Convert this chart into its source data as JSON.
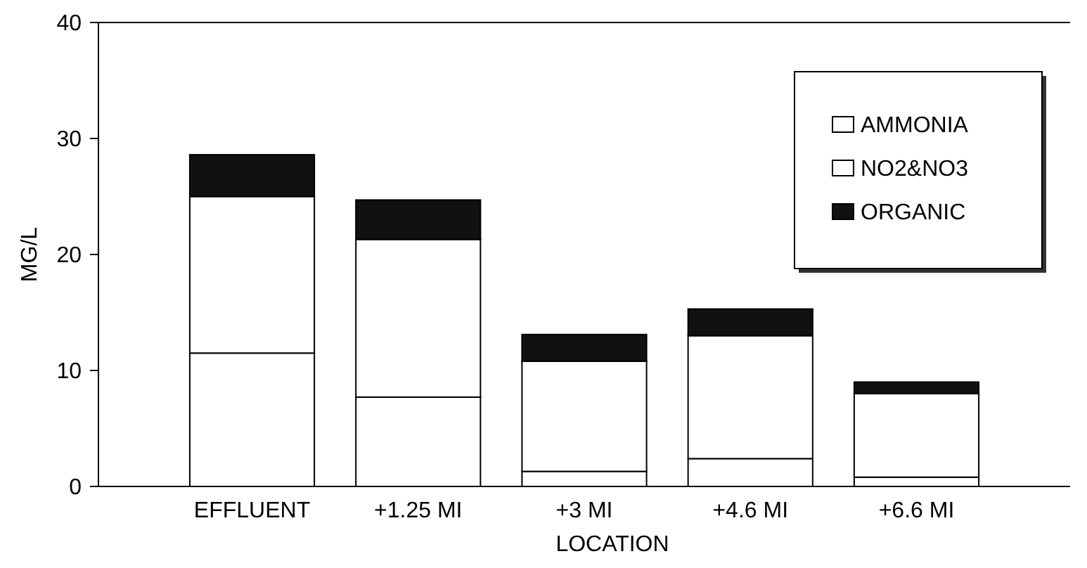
{
  "chart_data": {
    "type": "bar",
    "xlabel": "LOCATION",
    "ylabel": "MG/L",
    "categories": [
      "EFFLUENT",
      "+1.25 MI",
      "+3 MI",
      "+4.6 MI",
      "+6.6 MI"
    ],
    "stacked": true,
    "ylim": [
      0,
      40
    ],
    "yticks": [
      0,
      10,
      20,
      30,
      40
    ],
    "legend": "top right",
    "series": [
      {
        "name": "AMMONIA",
        "color": "#ffffff",
        "values": [
          11.5,
          7.7,
          1.3,
          2.4,
          0.8
        ]
      },
      {
        "name": "NO2&NO3",
        "color": "#ffffff",
        "values": [
          13.5,
          13.6,
          9.5,
          10.6,
          7.2
        ]
      },
      {
        "name": "ORGANIC",
        "color": "#111111",
        "values": [
          3.6,
          3.4,
          2.3,
          2.3,
          1.0
        ]
      }
    ]
  }
}
